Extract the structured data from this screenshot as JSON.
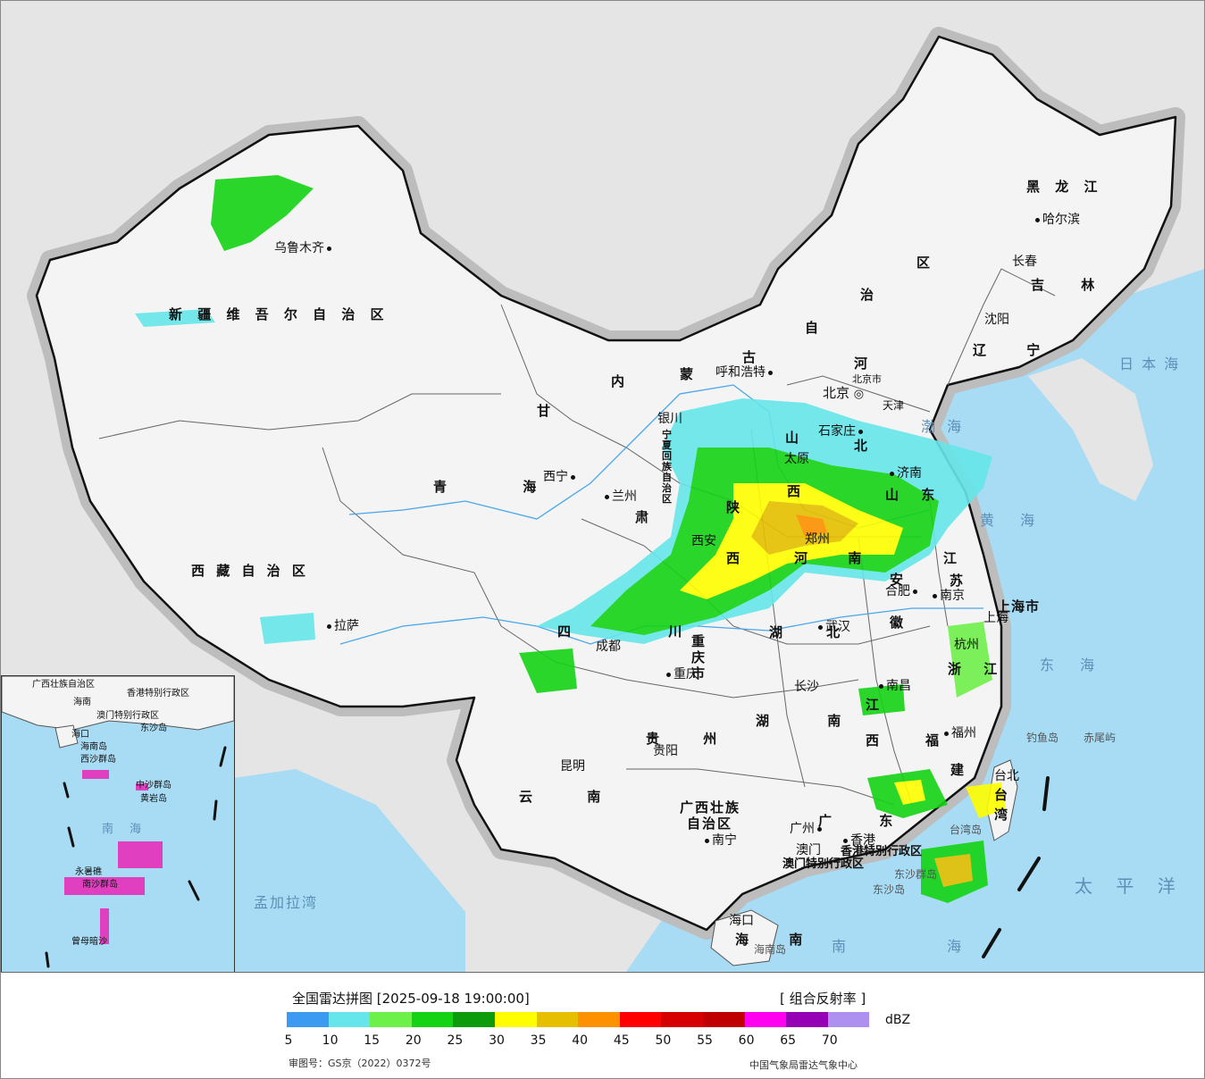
{
  "map": {
    "provinces": [
      {
        "name": "新疆维吾尔自治区",
        "text": "新 疆 维 吾 尔 自 治 区"
      },
      {
        "name": "西藏自治区",
        "text": "西 藏 自 治 区"
      },
      {
        "name": "青海",
        "text": "青 海"
      },
      {
        "name": "甘肃-甘",
        "text": "甘"
      },
      {
        "name": "甘肃-肃",
        "text": "肃"
      },
      {
        "name": "内蒙古-内",
        "text": "内"
      },
      {
        "name": "内蒙古-蒙",
        "text": "蒙"
      },
      {
        "name": "内蒙古-古",
        "text": "古"
      },
      {
        "name": "内蒙古-自",
        "text": "自"
      },
      {
        "name": "内蒙古-治",
        "text": "治"
      },
      {
        "name": "内蒙古-区",
        "text": "区"
      },
      {
        "name": "黑龙江",
        "text": "黑 龙 江"
      },
      {
        "name": "吉林",
        "text": "吉 林"
      },
      {
        "name": "辽宁",
        "text": "辽 宁"
      },
      {
        "name": "河北-河",
        "text": "河"
      },
      {
        "name": "河北-北",
        "text": "北"
      },
      {
        "name": "山西-山",
        "text": "山"
      },
      {
        "name": "山西-西",
        "text": "西"
      },
      {
        "name": "陕西-陕",
        "text": "陕"
      },
      {
        "name": "陕西-西",
        "text": "西"
      },
      {
        "name": "山东",
        "text": "山 东"
      },
      {
        "name": "河南",
        "text": "河 南"
      },
      {
        "name": "江苏-江",
        "text": "江"
      },
      {
        "name": "江苏-苏",
        "text": "苏"
      },
      {
        "name": "安徽-安",
        "text": "安"
      },
      {
        "name": "安徽-徽",
        "text": "徽"
      },
      {
        "name": "四川",
        "text": "四 川"
      },
      {
        "name": "湖北",
        "text": "湖 北"
      },
      {
        "name": "重庆市",
        "text": "重庆市"
      },
      {
        "name": "浙江",
        "text": "浙 江"
      },
      {
        "name": "贵州",
        "text": "贵 州"
      },
      {
        "name": "湖南",
        "text": "湖 南"
      },
      {
        "name": "江西-江",
        "text": "江"
      },
      {
        "name": "江西-西",
        "text": "西"
      },
      {
        "name": "福建-福",
        "text": "福"
      },
      {
        "name": "福建-建",
        "text": "建"
      },
      {
        "name": "云南",
        "text": "云 南"
      },
      {
        "name": "广西",
        "text": "广西壮族"
      },
      {
        "name": "广西2",
        "text": "自治区"
      },
      {
        "name": "广东",
        "text": "广 东"
      },
      {
        "name": "海南",
        "text": "海 南"
      },
      {
        "name": "台湾",
        "text": "台 湾"
      },
      {
        "name": "宁夏",
        "text": "宁夏回族自治区"
      },
      {
        "name": "上海市",
        "text": "上海市"
      },
      {
        "name": "天津",
        "text": "天津"
      },
      {
        "name": "北京市",
        "text": "北京市"
      },
      {
        "name": "香港",
        "text": "香港特别行政区"
      },
      {
        "name": "澳门",
        "text": "澳门特别行政区"
      }
    ],
    "cities": [
      {
        "name": "乌鲁木齐"
      },
      {
        "name": "拉萨"
      },
      {
        "name": "西宁"
      },
      {
        "name": "兰州"
      },
      {
        "name": "银川"
      },
      {
        "name": "呼和浩特"
      },
      {
        "name": "北京"
      },
      {
        "name": "石家庄"
      },
      {
        "name": "太原"
      },
      {
        "name": "济南"
      },
      {
        "name": "郑州"
      },
      {
        "name": "西安"
      },
      {
        "name": "成都"
      },
      {
        "name": "重庆"
      },
      {
        "name": "武汉"
      },
      {
        "name": "合肥"
      },
      {
        "name": "南京"
      },
      {
        "name": "上海"
      },
      {
        "name": "杭州"
      },
      {
        "name": "长沙"
      },
      {
        "name": "南昌"
      },
      {
        "name": "福州"
      },
      {
        "name": "台北"
      },
      {
        "name": "贵阳"
      },
      {
        "name": "昆明"
      },
      {
        "name": "南宁"
      },
      {
        "name": "广州"
      },
      {
        "name": "香港"
      },
      {
        "name": "澳门"
      },
      {
        "name": "海口"
      },
      {
        "name": "沈阳"
      },
      {
        "name": "长春"
      },
      {
        "name": "哈尔滨"
      }
    ],
    "seas": [
      {
        "name": "渤海",
        "text": "渤 海"
      },
      {
        "name": "黄海",
        "text": "黄 海"
      },
      {
        "name": "东海",
        "text": "东 海"
      },
      {
        "name": "日本海",
        "text": "日 本 海"
      },
      {
        "name": "太平洋",
        "text": "太 平 洋"
      },
      {
        "name": "南海",
        "text": "南 海"
      },
      {
        "name": "孟加拉湾",
        "text": "孟加拉湾"
      }
    ],
    "islands": [
      "钓鱼岛",
      "赤尾屿",
      "台湾岛",
      "东沙群岛",
      "东沙岛",
      "海南岛"
    ],
    "inset": {
      "labels": [
        "广西壮族自治区",
        "海南",
        "香港特别行政区",
        "澳门特别行政区",
        "东沙岛",
        "海口",
        "海南岛",
        "西沙群岛",
        "中沙群岛",
        "黄岩岛",
        "南海",
        "永暑礁",
        "南沙群岛",
        "曾母暗沙"
      ]
    }
  },
  "legend": {
    "title": "全国雷达拼图 [2025-09-18 19:00:00]",
    "product": "[ 组合反射率 ]",
    "unit": "dBZ",
    "colors": [
      "#3c9af0",
      "#66e6ea",
      "#6ef04a",
      "#14d314",
      "#0b9b0b",
      "#fefe00",
      "#e6c000",
      "#fd9100",
      "#ff0000",
      "#d70000",
      "#c00000",
      "#ff00f0",
      "#9600b4",
      "#ae90f0"
    ],
    "ticks": [
      "5",
      "10",
      "15",
      "20",
      "25",
      "30",
      "35",
      "40",
      "45",
      "50",
      "55",
      "60",
      "65",
      "70"
    ],
    "approval": "审图号：GS京（2022）0372号",
    "org": "中国气象局雷达气象中心"
  }
}
